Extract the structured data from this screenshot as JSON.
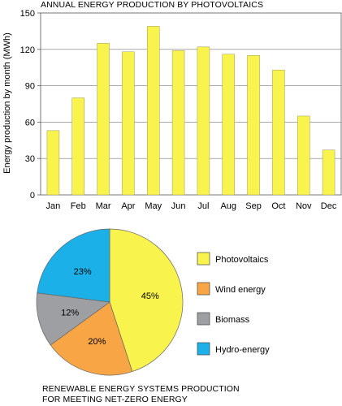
{
  "chart_data": [
    {
      "type": "bar",
      "title": "ANNUAL ENERGY PRODUCTION BY PHOTOVOLTAICS",
      "ylabel": "Energy production by month  (MWh)",
      "xlabel": "",
      "categories": [
        "Jan",
        "Feb",
        "Mar",
        "Apr",
        "May",
        "Jun",
        "Jul",
        "Aug",
        "Sep",
        "Oct",
        "Nov",
        "Dec"
      ],
      "values": [
        53,
        80,
        125,
        118,
        139,
        119,
        122,
        116,
        115,
        103,
        65,
        37
      ],
      "ylim": [
        0,
        150
      ],
      "yticks": [
        "0",
        "30",
        "60",
        "90",
        "120",
        "150"
      ],
      "grid": true,
      "bar_color": "#f9f34d"
    },
    {
      "type": "pie",
      "title_lines": [
        "RENEWABLE ENERGY SYSTEMS PRODUCTION",
        "FOR MEETING NET-ZERO ENERGY"
      ],
      "slices": [
        {
          "name": "Photovoltaics",
          "value": 45,
          "label": "45%",
          "color": "#f9f34d"
        },
        {
          "name": "Wind energy",
          "value": 20,
          "label": "20%",
          "color": "#f8a645"
        },
        {
          "name": "Biomass",
          "value": 12,
          "label": "12%",
          "color": "#9d9fa2"
        },
        {
          "name": "Hydro-energy",
          "value": 23,
          "label": "23%",
          "color": "#1bb1e8"
        }
      ],
      "legend_position": "right"
    }
  ]
}
